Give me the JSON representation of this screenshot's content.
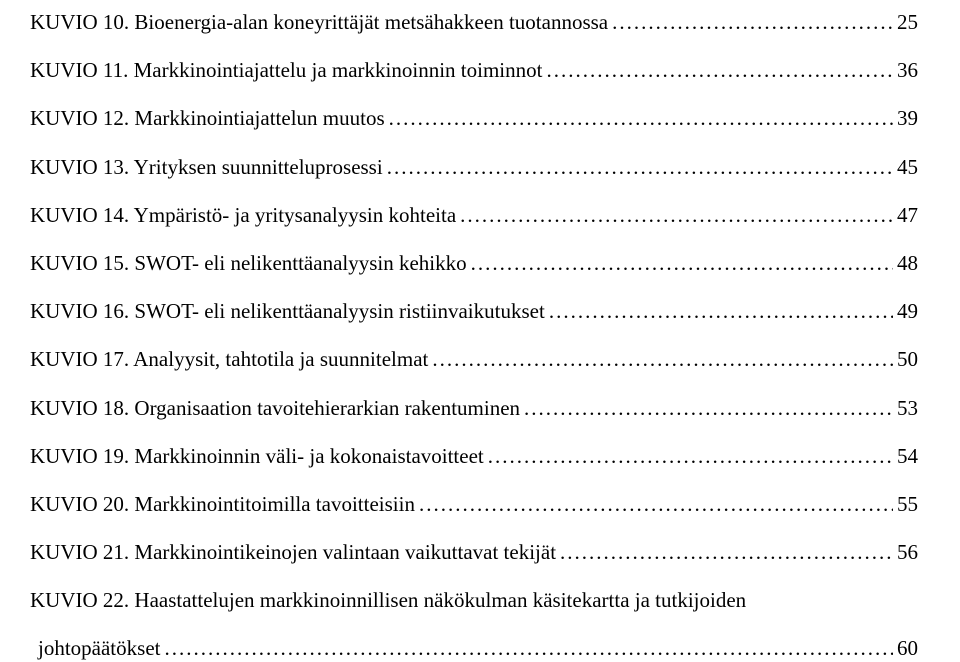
{
  "toc": [
    {
      "label": "KUVIO 10. Bioenergia-alan koneyrittäjät metsähakkeen tuotannossa",
      "page": "25"
    },
    {
      "label": "KUVIO 11. Markkinointiajattelu ja markkinoinnin toiminnot",
      "page": "36"
    },
    {
      "label": "KUVIO 12. Markkinointiajattelun muutos",
      "page": "39"
    },
    {
      "label": "KUVIO 13. Yrityksen suunnitteluprosessi",
      "page": "45"
    },
    {
      "label": "KUVIO 14. Ympäristö- ja yritysanalyysin kohteita",
      "page": "47"
    },
    {
      "label": "KUVIO 15. SWOT- eli nelikenttäanalyysin kehikko",
      "page": "48"
    },
    {
      "label": "KUVIO 16. SWOT- eli nelikenttäanalyysin ristiinvaikutukset",
      "page": "49"
    },
    {
      "label": "KUVIO 17. Analyysit, tahtotila ja suunnitelmat",
      "page": "50"
    },
    {
      "label": "KUVIO 18. Organisaation tavoitehierarkian rakentuminen",
      "page": "53"
    },
    {
      "label": "KUVIO 19. Markkinoinnin väli- ja kokonaistavoitteet",
      "page": "54"
    },
    {
      "label": "KUVIO 20. Markkinointitoimilla tavoitteisiin",
      "page": "55"
    },
    {
      "label": "KUVIO 21. Markkinointikeinojen valintaan vaikuttavat tekijät",
      "page": "56"
    }
  ],
  "multiline_entry": {
    "line1": "KUVIO 22. Haastattelujen markkinoinnillisen näkökulman käsitekartta ja tutkijoiden",
    "line2": "johtopäätökset",
    "page": "60"
  }
}
